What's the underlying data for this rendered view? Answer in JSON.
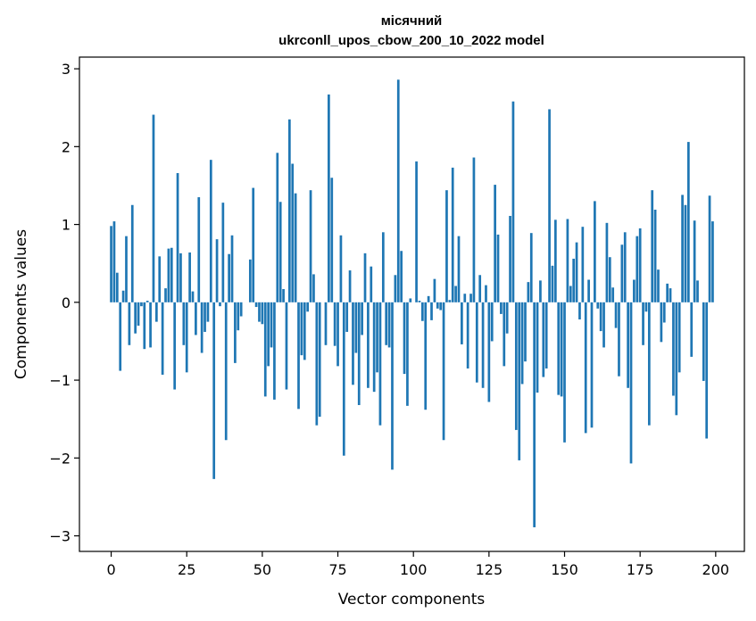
{
  "chart_data": {
    "type": "bar",
    "title_line1": "місячний",
    "title_line2": "ukrconll_upos_cbow_200_10_2022 model",
    "xlabel": "Vector components",
    "ylabel": "Components values",
    "xlim": [
      -10.5,
      209.5
    ],
    "ylim": [
      -3.2,
      3.15
    ],
    "xticks": [
      0,
      25,
      50,
      75,
      100,
      125,
      150,
      175,
      200
    ],
    "yticks": [
      -3,
      -2,
      -1,
      0,
      1,
      2,
      3
    ],
    "xtick_labels": [
      "0",
      "25",
      "50",
      "75",
      "100",
      "125",
      "150",
      "175",
      "200"
    ],
    "ytick_labels": [
      "−3",
      "−2",
      "−1",
      "0",
      "1",
      "2",
      "3"
    ],
    "grid": false,
    "bar_color": "#1f77b4",
    "values": [
      0.98,
      1.04,
      0.38,
      -0.88,
      0.15,
      0.85,
      -0.55,
      1.25,
      -0.4,
      -0.3,
      -0.05,
      -0.6,
      0.02,
      -0.58,
      2.41,
      -0.25,
      0.59,
      -0.93,
      0.18,
      0.69,
      0.7,
      -1.12,
      1.66,
      0.63,
      -0.55,
      -0.9,
      0.64,
      0.14,
      -0.42,
      1.35,
      -0.65,
      -0.38,
      -0.25,
      1.83,
      -2.27,
      0.81,
      -0.05,
      1.28,
      -1.77,
      0.62,
      0.86,
      -0.78,
      -0.36,
      -0.18,
      0.0,
      0.0,
      0.55,
      1.47,
      -0.06,
      -0.25,
      -0.28,
      -1.21,
      -0.82,
      -0.58,
      -1.25,
      1.92,
      1.29,
      0.17,
      -1.12,
      2.35,
      1.78,
      1.4,
      -1.37,
      -0.68,
      -0.74,
      -0.12,
      1.44,
      0.36,
      -1.58,
      -1.47,
      0.0,
      -0.55,
      2.67,
      1.6,
      -0.56,
      -0.82,
      0.86,
      -1.97,
      -0.38,
      0.41,
      -1.06,
      -0.65,
      -1.32,
      -0.42,
      0.63,
      -1.1,
      0.46,
      -1.15,
      -0.9,
      -1.58,
      0.9,
      -0.55,
      -0.58,
      -2.15,
      0.35,
      2.86,
      0.66,
      -0.92,
      -1.33,
      0.05,
      0.0,
      1.81,
      0.02,
      -0.24,
      -1.38,
      0.08,
      -0.23,
      0.3,
      -0.08,
      -0.1,
      -1.77,
      1.44,
      0.03,
      1.73,
      0.21,
      0.85,
      -0.54,
      0.11,
      -0.85,
      0.11,
      1.86,
      -1.03,
      0.35,
      -1.1,
      0.22,
      -1.28,
      -0.5,
      1.51,
      0.87,
      -0.15,
      -0.82,
      -0.4,
      1.11,
      2.58,
      -1.64,
      -2.03,
      -1.05,
      -0.76,
      0.26,
      0.89,
      -2.89,
      -1.16,
      0.28,
      -0.96,
      -0.85,
      2.48,
      0.47,
      1.06,
      -1.19,
      -1.21,
      -1.8,
      1.07,
      0.21,
      0.56,
      0.77,
      -0.22,
      0.97,
      -1.68,
      0.29,
      -1.61,
      1.3,
      -0.08,
      -0.37,
      -0.58,
      1.02,
      0.58,
      0.19,
      -0.33,
      -0.95,
      0.74,
      0.9,
      -1.1,
      -2.07,
      0.29,
      0.85,
      0.95,
      -0.55,
      -0.12,
      -1.58,
      1.44,
      1.19,
      0.42,
      -0.51,
      -0.26,
      0.24,
      0.18,
      -1.2,
      -1.45,
      -0.9,
      1.38,
      1.25,
      2.06,
      -0.7,
      1.05,
      0.28,
      0.0,
      -1.01,
      -1.75,
      1.37,
      1.04
    ]
  }
}
